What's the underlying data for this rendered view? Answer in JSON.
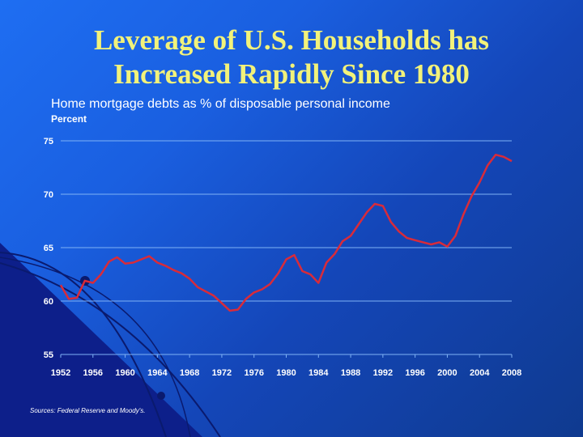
{
  "slide": {
    "title_line_1": "Leverage of U.S. Households has",
    "title_line_2": "Increased Rapidly Since 1980",
    "source": "Sources: Federal Reserve and Moody's.",
    "colors": {
      "title": "#f2f27a",
      "series": "#d92b3a",
      "grid": "#7fb2f5",
      "text": "#ffffff"
    }
  },
  "chart_data": {
    "type": "line",
    "title": "Home mortgage debts as % of disposable personal income",
    "ylabel": "Percent",
    "xlabel": "",
    "xlim": [
      1952,
      2008
    ],
    "ylim": [
      55,
      75
    ],
    "x_ticks": [
      1952,
      1956,
      1960,
      1964,
      1968,
      1972,
      1976,
      1980,
      1984,
      1988,
      1992,
      1996,
      2000,
      2004,
      2008
    ],
    "y_ticks": [
      55,
      60,
      65,
      70,
      75
    ],
    "grid": true,
    "series": [
      {
        "name": "Home mortgage debts as % of disposable personal income",
        "x": [
          1952,
          1953,
          1954,
          1955,
          1956,
          1957,
          1958,
          1959,
          1960,
          1961,
          1962,
          1963,
          1964,
          1965,
          1966,
          1967,
          1968,
          1969,
          1970,
          1971,
          1972,
          1973,
          1974,
          1975,
          1976,
          1977,
          1978,
          1979,
          1980,
          1981,
          1982,
          1983,
          1984,
          1985,
          1986,
          1987,
          1988,
          1989,
          1990,
          1991,
          1992,
          1993,
          1994,
          1995,
          1996,
          1997,
          1998,
          1999,
          2000,
          2001,
          2002,
          2003,
          2004,
          2005,
          2006,
          2007,
          2008
        ],
        "values": [
          61.5,
          60.2,
          60.3,
          61.9,
          61.7,
          62.5,
          63.7,
          64.1,
          63.5,
          63.6,
          63.9,
          64.2,
          63.6,
          63.3,
          62.9,
          62.6,
          62.1,
          61.3,
          60.9,
          60.5,
          59.8,
          59.1,
          59.2,
          60.2,
          60.8,
          61.1,
          61.6,
          62.6,
          63.9,
          64.3,
          62.8,
          62.5,
          61.7,
          63.6,
          64.4,
          65.6,
          66.1,
          67.2,
          68.3,
          69.1,
          68.9,
          67.4,
          66.5,
          65.9,
          65.7,
          65.5,
          65.3,
          65.5,
          65.1,
          66.1,
          68.1,
          69.8,
          71.1,
          72.7,
          73.7,
          73.5,
          73.1
        ]
      }
    ]
  }
}
